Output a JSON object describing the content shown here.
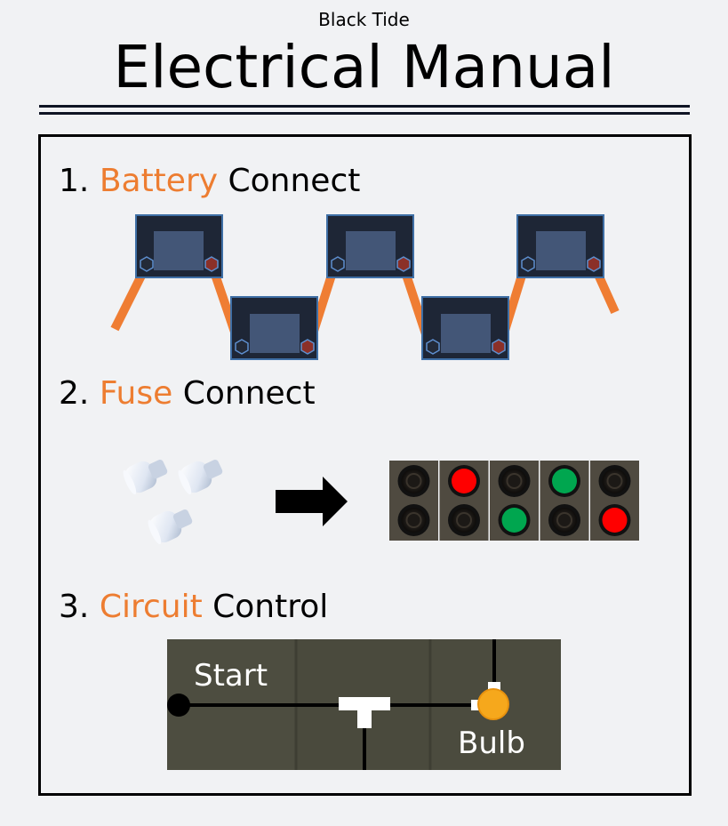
{
  "header": {
    "subtitle": "Black Tide",
    "title": "Electrical Manual"
  },
  "steps": [
    {
      "number": "1.",
      "highlight": "Battery",
      "rest": "Connect"
    },
    {
      "number": "2.",
      "highlight": "Fuse",
      "rest": "Connect"
    },
    {
      "number": "3.",
      "highlight": "Circuit",
      "rest": "Control"
    }
  ],
  "fuse_board": {
    "columns": [
      {
        "top": "off",
        "bottom": "off"
      },
      {
        "top": "red",
        "bottom": "off"
      },
      {
        "top": "off",
        "bottom": "green"
      },
      {
        "top": "green",
        "bottom": "off"
      },
      {
        "top": "off",
        "bottom": "red"
      }
    ]
  },
  "circuit": {
    "start_label": "Start",
    "bulb_label": "Bulb"
  },
  "colors": {
    "accent": "#ed7d31",
    "light_red": "#ff0000",
    "light_green": "#00a64f",
    "bulb": "#f6a81c"
  }
}
